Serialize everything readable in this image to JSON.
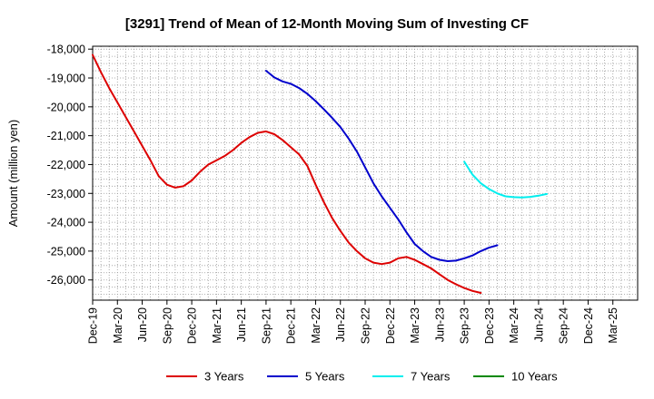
{
  "chart_data": {
    "type": "line",
    "title": "[3291]  Trend of Mean of 12-Month Moving Sum of Investing CF",
    "xlabel": "",
    "ylabel": "Amount (million yen)",
    "ylim": [
      -26700,
      -17900
    ],
    "yticks": [
      -18000,
      -19000,
      -20000,
      -21000,
      -22000,
      -23000,
      -24000,
      -25000,
      -26000
    ],
    "ytick_labels": [
      "-18,000",
      "-19,000",
      "-20,000",
      "-21,000",
      "-22,000",
      "-23,000",
      "-24,000",
      "-25,000",
      "-26,000"
    ],
    "x_start": "Dec-19",
    "x_months_total": 66,
    "xtick_labels": [
      "Dec-19",
      "Mar-20",
      "Jun-20",
      "Sep-20",
      "Dec-20",
      "Mar-21",
      "Jun-21",
      "Sep-21",
      "Dec-21",
      "Mar-22",
      "Jun-22",
      "Sep-22",
      "Dec-22",
      "Mar-23",
      "Jun-23",
      "Sep-23",
      "Dec-23",
      "Mar-24",
      "Jun-24",
      "Sep-24",
      "Dec-24",
      "Mar-25"
    ],
    "grid": true,
    "legend_position": "bottom",
    "series": [
      {
        "name": "3 Years",
        "color": "#dd0000",
        "x_offset": 0,
        "values": [
          -18200,
          -18800,
          -19350,
          -19850,
          -20350,
          -20850,
          -21350,
          -21850,
          -22400,
          -22700,
          -22800,
          -22750,
          -22550,
          -22250,
          -22000,
          -21850,
          -21700,
          -21500,
          -21250,
          -21050,
          -20900,
          -20850,
          -20950,
          -21150,
          -21400,
          -21650,
          -22050,
          -22700,
          -23300,
          -23850,
          -24300,
          -24700,
          -25000,
          -25250,
          -25400,
          -25450,
          -25400,
          -25250,
          -25200,
          -25300,
          -25450,
          -25600,
          -25800,
          -26000,
          -26150,
          -26280,
          -26380,
          -26450
        ]
      },
      {
        "name": "5 Years",
        "color": "#0000cc",
        "x_offset": 21,
        "values": [
          -18750,
          -18980,
          -19120,
          -19200,
          -19350,
          -19550,
          -19800,
          -20080,
          -20380,
          -20700,
          -21100,
          -21550,
          -22100,
          -22650,
          -23100,
          -23500,
          -23900,
          -24350,
          -24750,
          -25000,
          -25200,
          -25300,
          -25350,
          -25330,
          -25250,
          -25150,
          -25000,
          -24880,
          -24800
        ]
      },
      {
        "name": "7 Years",
        "color": "#00eeee",
        "x_offset": 45,
        "values": [
          -21900,
          -22350,
          -22650,
          -22850,
          -23000,
          -23100,
          -23130,
          -23140,
          -23120,
          -23080,
          -23020
        ]
      },
      {
        "name": "10 Years",
        "color": "#008800",
        "x_offset": 0,
        "values": []
      }
    ]
  }
}
